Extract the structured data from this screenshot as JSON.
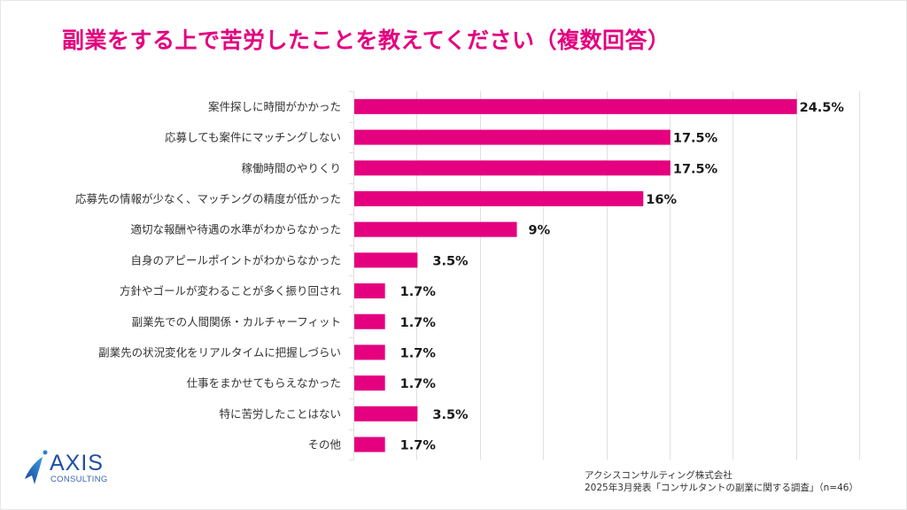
{
  "title": "副業をする上で苦労したことを教えてください（複数回答）",
  "colors": {
    "title": "#e4007f",
    "bar": "#e4007f",
    "gridline": "#e0e0e0",
    "logo": "#1f4fa3"
  },
  "chart_data": {
    "type": "bar",
    "orientation": "horizontal",
    "title": "副業をする上で苦労したことを教えてください（複数回答）",
    "xlabel": "",
    "ylabel": "",
    "xlim": [
      0,
      28
    ],
    "grid": true,
    "grid_step": 3.5,
    "value_suffix": "%",
    "categories": [
      "案件探しに時間がかかった",
      "応募しても案件にマッチングしない",
      "稼働時間のやりくり",
      "応募先の情報が少なく、マッチングの精度が低かった",
      "適切な報酬や待遇の水準がわからなかった",
      "自身のアピールポイントがわからなかった",
      "方針やゴールが変わることが多く振り回され",
      "副業先での人間関係・カルチャーフィット",
      "副業先の状況変化をリアルタイムに把握しづらい",
      "仕事をまかせてもらえなかった",
      "特に苦労したことはない",
      "その他"
    ],
    "values": [
      24.5,
      17.5,
      17.5,
      16,
      9,
      3.5,
      1.7,
      1.7,
      1.7,
      1.7,
      3.5,
      1.7
    ],
    "value_labels": [
      "24.5%",
      "17.5%",
      "17.5%",
      "16%",
      "9%",
      "3.5%",
      "1.7%",
      "1.7%",
      "1.7%",
      "1.7%",
      "3.5%",
      "1.7%"
    ]
  },
  "logo": {
    "name": "AXIS",
    "sub": "CONSULTING"
  },
  "source": {
    "line1": "アクシスコンサルティング株式会社",
    "line2": "2025年3月発表「コンサルタントの副業に関する調査」（n=46）"
  }
}
